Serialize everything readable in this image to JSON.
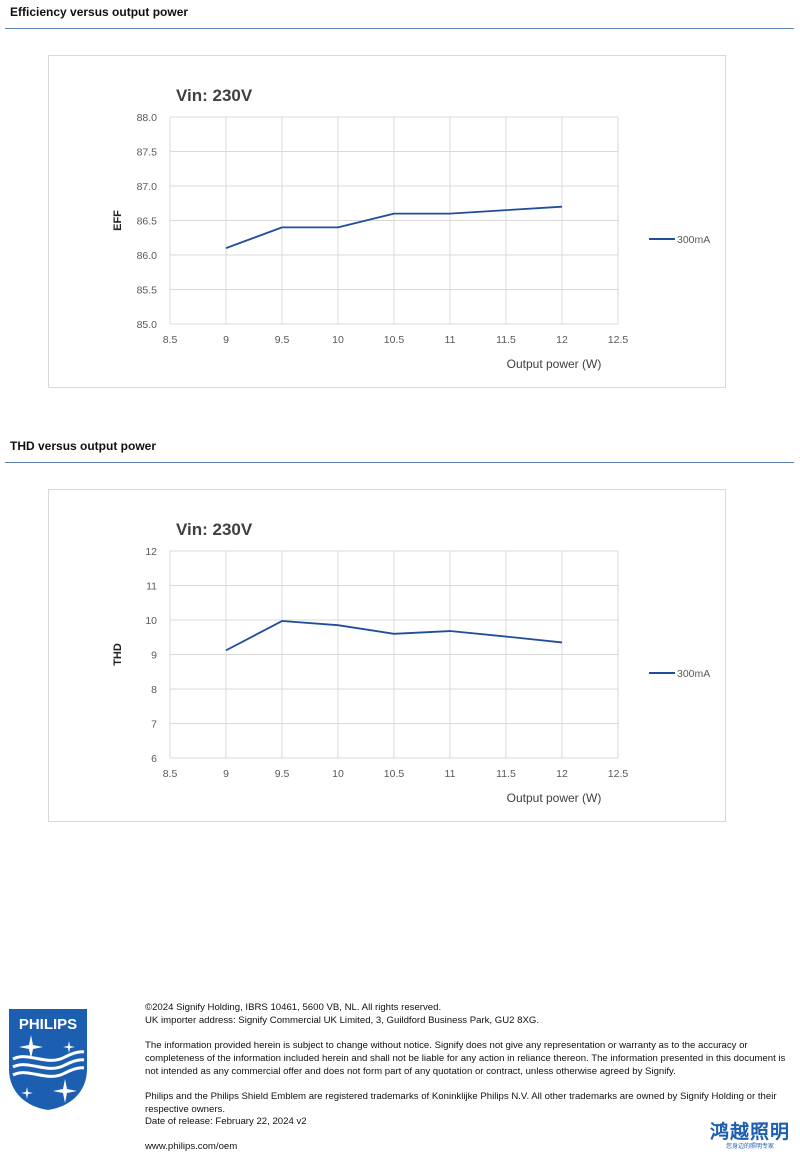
{
  "sections": [
    {
      "title": "Efficiency versus output power",
      "chart_data": {
        "type": "line",
        "title": "Vin: 230V",
        "xlabel": "Output power (W)",
        "ylabel": "EFF",
        "xlim": [
          8.5,
          12.5
        ],
        "ylim": [
          85.0,
          88.0
        ],
        "x_ticks": [
          "8.5",
          "9",
          "9.5",
          "10",
          "10.5",
          "11",
          "11.5",
          "12",
          "12.5"
        ],
        "y_ticks": [
          "85.0",
          "85.5",
          "86.0",
          "86.5",
          "87.0",
          "87.5",
          "88.0"
        ],
        "grid": true,
        "legend_position": "right",
        "series": [
          {
            "name": "300mA",
            "color": "#1f4e9c",
            "x": [
              9,
              9.5,
              10,
              10.5,
              11,
              11.5,
              12
            ],
            "values": [
              86.1,
              86.4,
              86.4,
              86.6,
              86.6,
              86.65,
              86.7
            ]
          }
        ]
      }
    },
    {
      "title": "THD versus output power",
      "chart_data": {
        "type": "line",
        "title": "Vin: 230V",
        "xlabel": "Output power (W)",
        "ylabel": "THD",
        "xlim": [
          8.5,
          12.5
        ],
        "ylim": [
          6,
          12
        ],
        "x_ticks": [
          "8.5",
          "9",
          "9.5",
          "10",
          "10.5",
          "11",
          "11.5",
          "12",
          "12.5"
        ],
        "y_ticks": [
          "6",
          "7",
          "8",
          "9",
          "10",
          "11",
          "12"
        ],
        "grid": true,
        "legend_position": "right",
        "series": [
          {
            "name": "300mA",
            "color": "#1f4e9c",
            "x": [
              9,
              9.5,
              10,
              10.5,
              11,
              11.5,
              12
            ],
            "values": [
              9.12,
              9.97,
              9.85,
              9.6,
              9.68,
              9.52,
              9.35
            ]
          }
        ]
      }
    }
  ],
  "footer": {
    "line1": "©2024 Signify Holding, IBRS 10461, 5600 VB, NL. All rights reserved.",
    "line2": "UK importer address: Signify Commercial UK Limited, 3, Guildford Business Park, GU2 8XG.",
    "disclaimer": "The information provided herein is subject to change without notice. Signify does not give any representation or warranty as to the accuracy or completeness of the information included herein and shall not be liable for any action in reliance thereon. The information presented in this document is not intended as any commercial offer and does not form part of any quotation or contract, unless otherwise agreed by Signify.",
    "trademarks": "Philips and the Philips Shield Emblem are registered trademarks of Koninklijke Philips N.V. All other trademarks are owned by Signify Holding or their respective owners.",
    "release": "Date of release: February 22, 2024 v2",
    "website": "www.philips.com/oem"
  },
  "logo": {
    "text": "PHILIPS",
    "color": "#1c5fb0"
  },
  "brand_cn": {
    "name": "鸿越照明",
    "tagline": "您身边的照明专家",
    "color": "#1c5fb0"
  }
}
